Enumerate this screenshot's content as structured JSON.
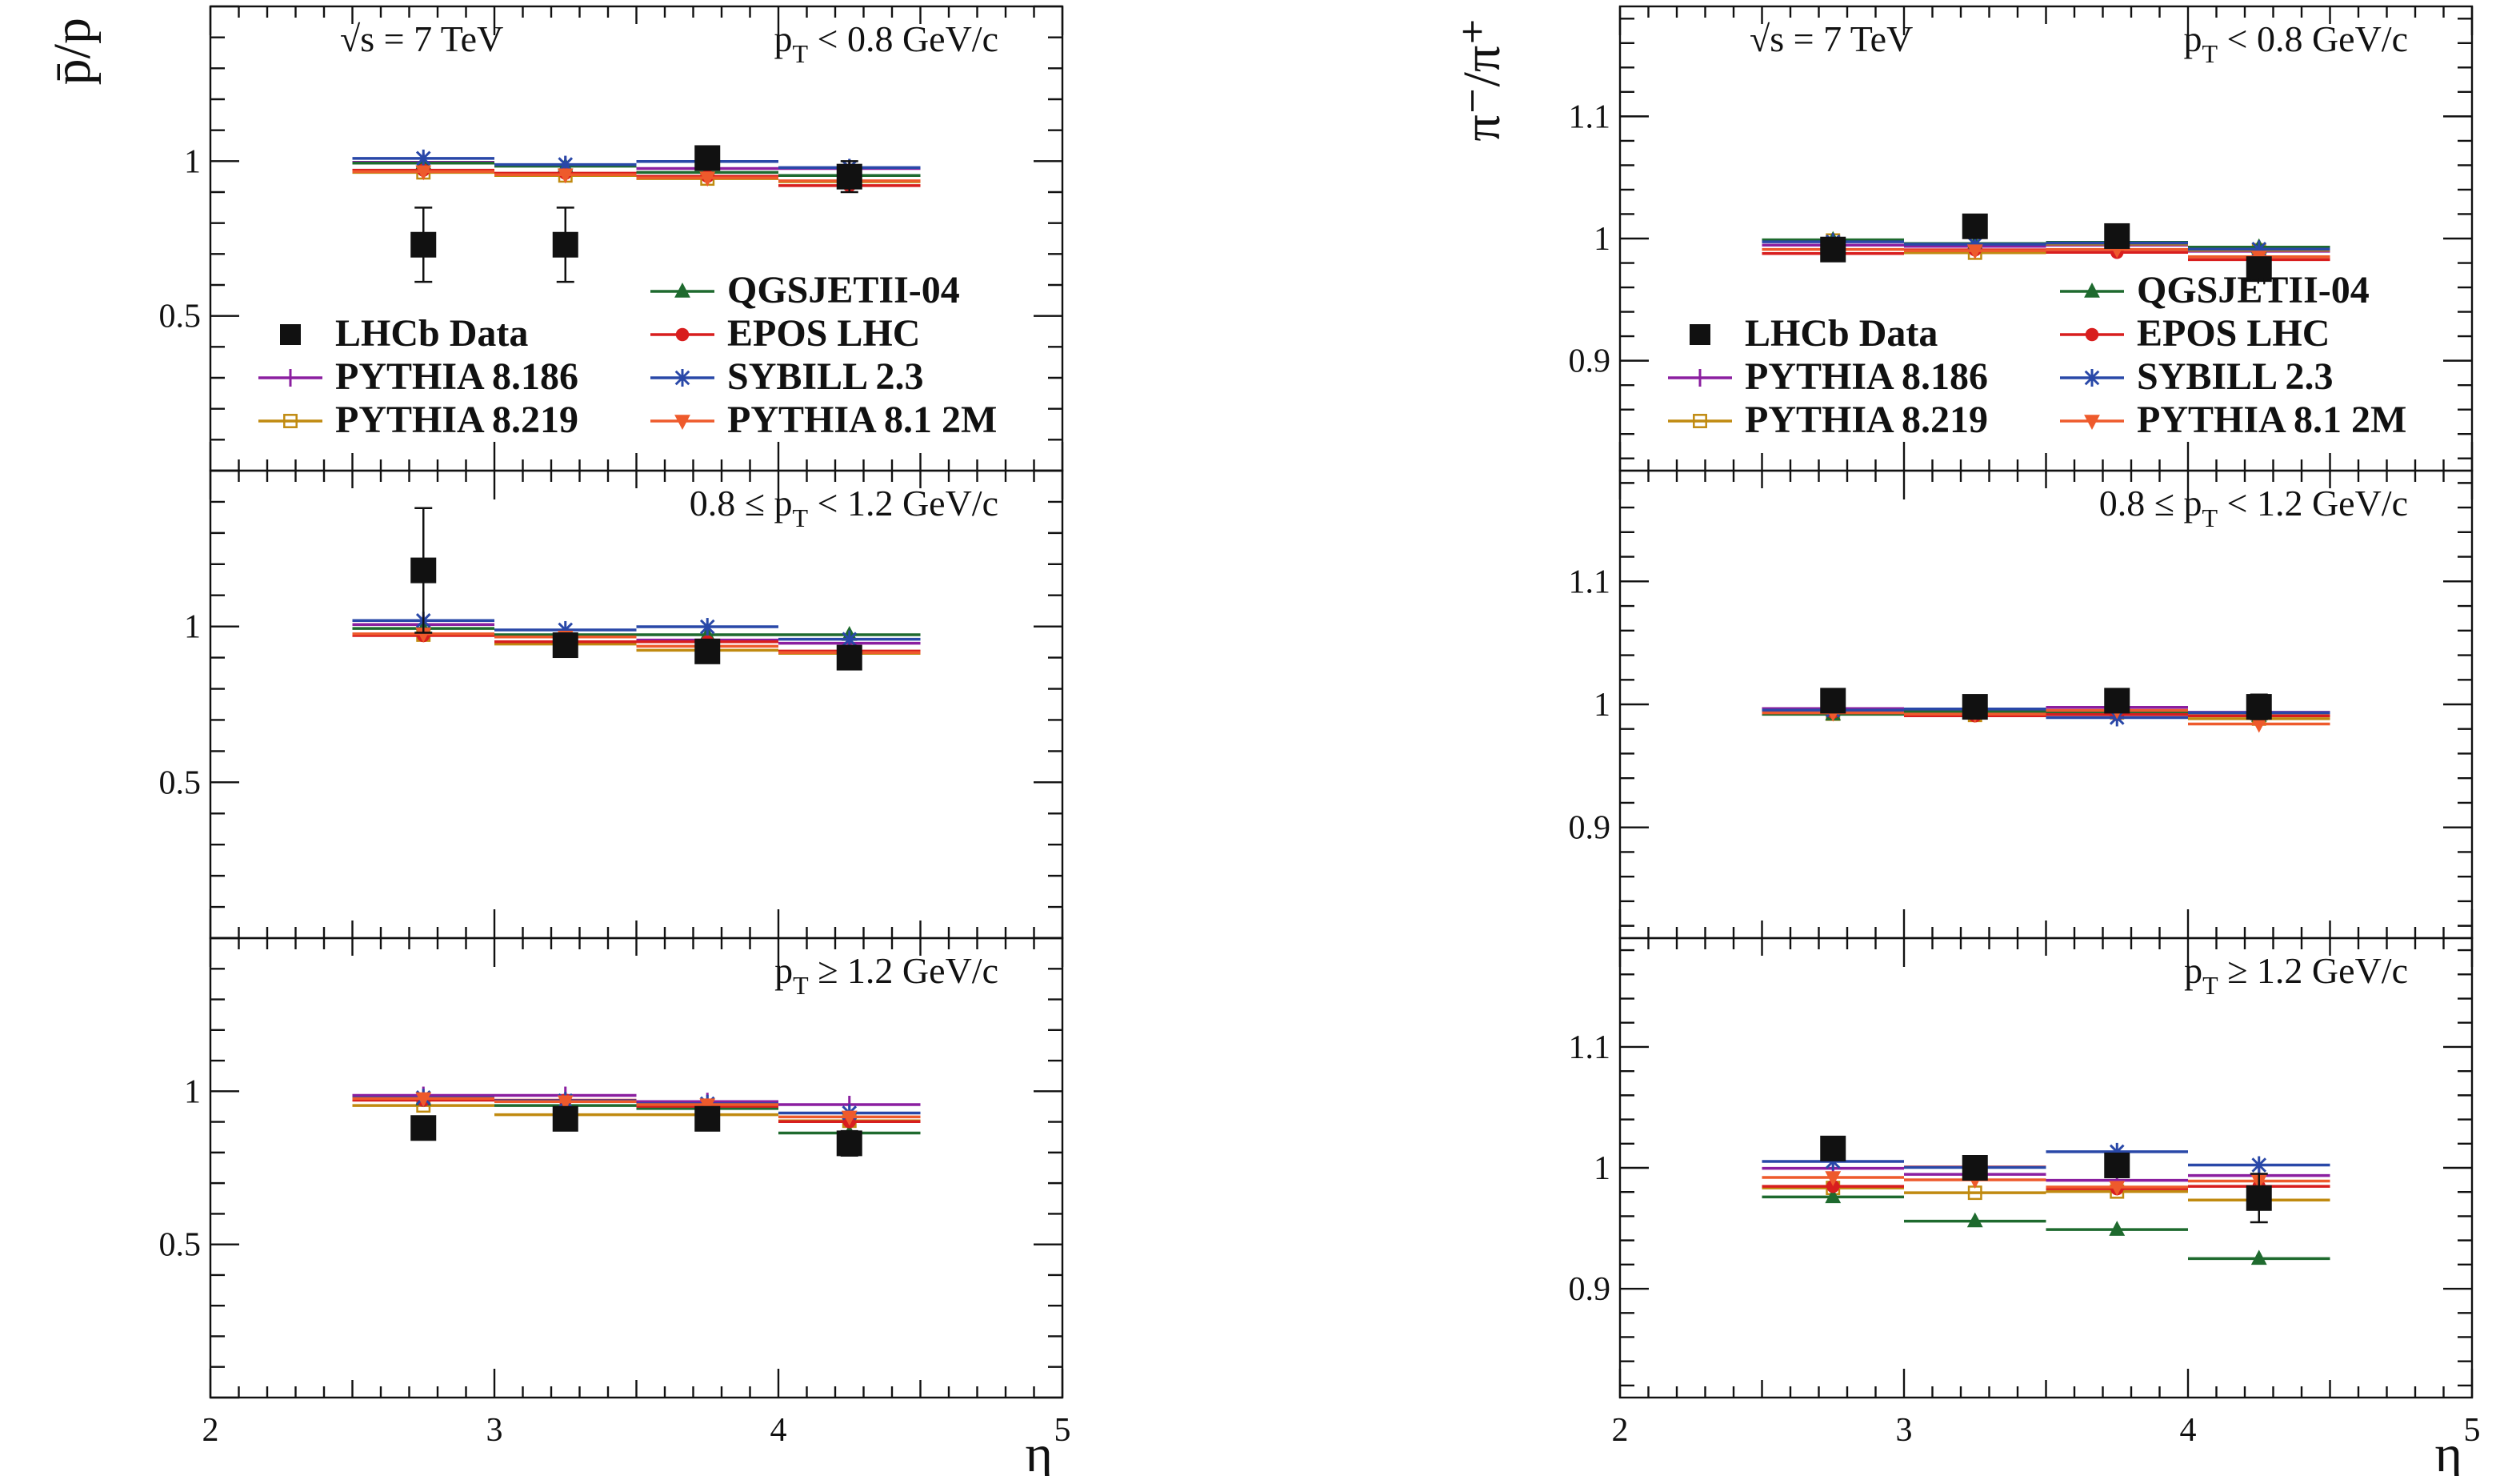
{
  "colors": {
    "LHCb Data": "#111111",
    "PYTHIA 8.186": "#8b1fa0",
    "PYTHIA 8.219": "#c08a10",
    "QGSJETII-04": "#1e6a2e",
    "EPOS LHC": "#d81e1e",
    "SYBILL 2.3": "#2948a8",
    "PYTHIA 8.1 2M": "#ee5a2c"
  },
  "legend": {
    "entries": [
      "LHCb Data",
      "PYTHIA 8.186",
      "PYTHIA 8.219",
      "QGSJETII-04",
      "EPOS LHC",
      "SYBILL 2.3",
      "PYTHIA 8.1 2M"
    ],
    "placement": "top panel, lower part"
  },
  "chart_data": [
    {
      "type": "scatter",
      "ylabel": "p̄/p",
      "xlabel": "η",
      "xlim": [
        2,
        5
      ],
      "xticks": [
        "2",
        "3",
        "4",
        "5"
      ],
      "ylim": [
        0,
        1.5
      ],
      "yticks": [
        "0.5",
        "1"
      ],
      "ytick_values": [
        0.5,
        1
      ],
      "energy_label": "√s = 7 TeV",
      "panels": [
        {
          "pt_label": "p_T < 0.8 GeV/c",
          "data": {
            "x": [
              2.75,
              3.25,
              3.75,
              4.25
            ],
            "y": [
              0.73,
              0.73,
              1.01,
              0.95
            ],
            "err": [
              0.12,
              0.12,
              0.03,
              0.05
            ]
          },
          "models": [
            {
              "name": "PYTHIA 8.186",
              "y": [
                0.99,
                0.98,
                0.97,
                0.97
              ]
            },
            {
              "name": "PYTHIA 8.219",
              "y": [
                0.97,
                0.96,
                0.95,
                0.94
              ]
            },
            {
              "name": "QGSJETII-04",
              "y": [
                0.99,
                0.98,
                0.96,
                0.95
              ]
            },
            {
              "name": "EPOS LHC",
              "y": [
                0.98,
                0.97,
                0.96,
                0.93
              ]
            },
            {
              "name": "SYBILL 2.3",
              "y": [
                1.0,
                0.98,
                0.99,
                0.97
              ]
            },
            {
              "name": "PYTHIA 8.1 2M",
              "y": [
                0.97,
                0.96,
                0.95,
                0.94
              ]
            }
          ]
        },
        {
          "pt_label": "0.8 ≤ p_T < 1.2 GeV/c",
          "data": {
            "x": [
              2.75,
              3.25,
              3.75,
              4.25
            ],
            "y": [
              1.18,
              0.94,
              0.92,
              0.9
            ],
            "err": [
              0.2,
              0.03,
              0.03,
              0.03
            ]
          },
          "models": [
            {
              "name": "PYTHIA 8.186",
              "y": [
                1.0,
                0.96,
                0.95,
                0.94
              ]
            },
            {
              "name": "PYTHIA 8.219",
              "y": [
                0.98,
                0.95,
                0.93,
                0.92
              ]
            },
            {
              "name": "QGSJETII-04",
              "y": [
                0.99,
                0.97,
                0.97,
                0.97
              ]
            },
            {
              "name": "EPOS LHC",
              "y": [
                0.98,
                0.96,
                0.96,
                0.93
              ]
            },
            {
              "name": "SYBILL 2.3",
              "y": [
                1.01,
                0.98,
                0.99,
                0.95
              ]
            },
            {
              "name": "PYTHIA 8.1 2M",
              "y": [
                0.98,
                0.97,
                0.94,
                0.92
              ]
            }
          ]
        },
        {
          "pt_label": "p_T ≥ 1.2 GeV/c",
          "data": {
            "x": [
              2.75,
              3.25,
              3.75,
              4.25
            ],
            "y": [
              0.88,
              0.91,
              0.91,
              0.83
            ],
            "err": [
              0.02,
              0.02,
              0.02,
              0.04
            ]
          },
          "models": [
            {
              "name": "PYTHIA 8.186",
              "y": [
                0.98,
                0.98,
                0.96,
                0.95
              ]
            },
            {
              "name": "PYTHIA 8.219",
              "y": [
                0.96,
                0.93,
                0.93,
                0.91
              ]
            },
            {
              "name": "QGSJETII-04",
              "y": [
                0.97,
                0.95,
                0.94,
                0.86
              ]
            },
            {
              "name": "EPOS LHC",
              "y": [
                0.98,
                0.98,
                0.96,
                0.91
              ]
            },
            {
              "name": "SYBILL 2.3",
              "y": [
                0.97,
                0.96,
                0.95,
                0.92
              ]
            },
            {
              "name": "PYTHIA 8.1 2M",
              "y": [
                0.98,
                0.97,
                0.96,
                0.92
              ]
            }
          ]
        }
      ]
    },
    {
      "type": "scatter",
      "ylabel": "π⁻/π⁺",
      "xlabel": "η",
      "xlim": [
        2,
        5
      ],
      "xticks": [
        "2",
        "3",
        "4",
        "5"
      ],
      "ylim": [
        0.81,
        1.19
      ],
      "yticks": [
        "0.9",
        "1",
        "1.1"
      ],
      "ytick_values": [
        0.9,
        1.0,
        1.1
      ],
      "energy_label": "√s = 7 TeV",
      "panels": [
        {
          "pt_label": "p_T < 0.8 GeV/c",
          "data": {
            "x": [
              2.75,
              3.25,
              3.75,
              4.25
            ],
            "y": [
              0.991,
              1.01,
              1.002,
              0.975
            ],
            "err": [
              0.003,
              0.004,
              0.004,
              0.004
            ]
          },
          "models": [
            {
              "name": "PYTHIA 8.186",
              "y": [
                0.993,
                0.992,
                0.993,
                0.988
              ]
            },
            {
              "name": "PYTHIA 8.219",
              "y": [
                1.0,
                0.99,
                0.997,
                0.992
              ]
            },
            {
              "name": "QGSJETII-04",
              "y": [
                0.998,
                0.995,
                0.996,
                0.992
              ]
            },
            {
              "name": "EPOS LHC",
              "y": [
                0.99,
                0.993,
                0.991,
                0.985
              ]
            },
            {
              "name": "SYBILL 2.3",
              "y": [
                0.995,
                0.993,
                0.994,
                0.989
              ]
            },
            {
              "name": "PYTHIA 8.1 2M",
              "y": [
                0.992,
                0.991,
                0.992,
                0.986
              ]
            }
          ]
        },
        {
          "pt_label": "0.8 ≤ p_T < 1.2 GeV/c",
          "data": {
            "x": [
              2.75,
              3.25,
              3.75,
              4.25
            ],
            "y": [
              1.003,
              0.998,
              1.003,
              0.998
            ],
            "err": [
              0.004,
              0.003,
              0.004,
              0.01
            ]
          },
          "models": [
            {
              "name": "PYTHIA 8.186",
              "y": [
                0.995,
                0.994,
                0.996,
                0.992
              ]
            },
            {
              "name": "PYTHIA 8.219",
              "y": [
                0.994,
                0.993,
                0.995,
                0.99
              ]
            },
            {
              "name": "QGSJETII-04",
              "y": [
                0.991,
                0.993,
                0.993,
                0.99
              ]
            },
            {
              "name": "EPOS LHC",
              "y": [
                0.996,
                0.993,
                0.994,
                0.993
              ]
            },
            {
              "name": "SYBILL 2.3",
              "y": [
                0.993,
                0.994,
                0.987,
                0.991
              ]
            },
            {
              "name": "PYTHIA 8.1 2M",
              "y": [
                0.994,
                0.993,
                0.996,
                0.985
              ]
            }
          ]
        },
        {
          "pt_label": "p_T ≥ 1.2 GeV/c",
          "data": {
            "x": [
              2.75,
              3.25,
              3.75,
              4.25
            ],
            "y": [
              1.016,
              1.0,
              1.002,
              0.975
            ],
            "err": [
              0.006,
              0.008,
              0.009,
              0.02
            ]
          },
          "models": [
            {
              "name": "PYTHIA 8.186",
              "y": [
                0.998,
                0.993,
                0.988,
                0.992
              ]
            },
            {
              "name": "PYTHIA 8.219",
              "y": [
                0.985,
                0.981,
                0.982,
                0.975
              ]
            },
            {
              "name": "QGSJETII-04",
              "y": [
                0.975,
                0.955,
                0.948,
                0.924
              ]
            },
            {
              "name": "EPOS LHC",
              "y": [
                0.987,
                1.003,
                0.985,
                0.987
              ]
            },
            {
              "name": "SYBILL 2.3",
              "y": [
                1.003,
                0.998,
                1.011,
                1.0
              ]
            },
            {
              "name": "PYTHIA 8.1 2M",
              "y": [
                0.993,
                0.991,
                0.985,
                0.99
              ]
            }
          ]
        }
      ]
    }
  ]
}
